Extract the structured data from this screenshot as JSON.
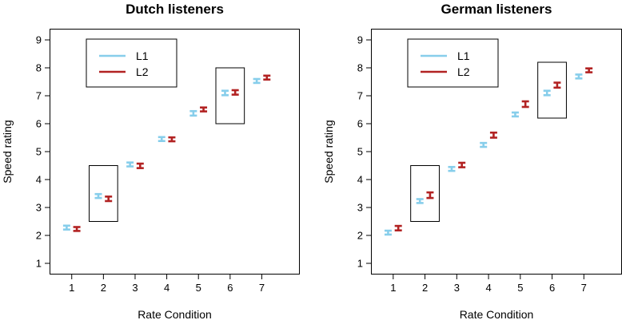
{
  "chart_data": [
    {
      "type": "errorbar",
      "title": "Dutch listeners",
      "xlabel": "Rate Condition",
      "ylabel": "Speed rating",
      "ylim": [
        0.6,
        9.4
      ],
      "yticks": [
        1,
        2,
        3,
        4,
        5,
        6,
        7,
        8,
        9
      ],
      "categories": [
        "1",
        "2",
        "3",
        "4",
        "5",
        "6",
        "7"
      ],
      "legend": {
        "position": "top-left"
      },
      "series": [
        {
          "name": "L1",
          "color": "#87CEEB",
          "values": [
            2.28,
            3.41,
            4.54,
            5.45,
            6.37,
            7.1,
            7.53
          ],
          "err": [
            0.07,
            0.07,
            0.07,
            0.07,
            0.08,
            0.08,
            0.07
          ]
        },
        {
          "name": "L2",
          "color": "#B22222",
          "values": [
            2.23,
            3.31,
            4.49,
            5.44,
            6.51,
            7.12,
            7.65
          ],
          "err": [
            0.07,
            0.08,
            0.08,
            0.07,
            0.07,
            0.08,
            0.07
          ]
        }
      ],
      "highlight_boxes": [
        {
          "x_range": [
            1.55,
            2.45
          ],
          "y_range": [
            2.5,
            4.5
          ]
        },
        {
          "x_range": [
            5.55,
            6.45
          ],
          "y_range": [
            6.0,
            8.0
          ]
        }
      ]
    },
    {
      "type": "errorbar",
      "title": "German listeners",
      "xlabel": "Rate Condition",
      "ylabel": "Speed rating",
      "ylim": [
        0.6,
        9.4
      ],
      "yticks": [
        1,
        2,
        3,
        4,
        5,
        6,
        7,
        8,
        9
      ],
      "categories": [
        "1",
        "2",
        "3",
        "4",
        "5",
        "6",
        "7"
      ],
      "legend": {
        "position": "top-left"
      },
      "series": [
        {
          "name": "L1",
          "color": "#87CEEB",
          "values": [
            2.1,
            3.23,
            4.38,
            5.24,
            6.33,
            7.1,
            7.69
          ],
          "err": [
            0.07,
            0.07,
            0.07,
            0.07,
            0.07,
            0.08,
            0.07
          ]
        },
        {
          "name": "L2",
          "color": "#B22222",
          "values": [
            2.26,
            3.44,
            4.52,
            5.59,
            6.7,
            7.38,
            7.91
          ],
          "err": [
            0.08,
            0.1,
            0.08,
            0.09,
            0.1,
            0.09,
            0.07
          ]
        }
      ],
      "highlight_boxes": [
        {
          "x_range": [
            1.55,
            2.45
          ],
          "y_range": [
            2.5,
            4.5
          ]
        },
        {
          "x_range": [
            5.55,
            6.45
          ],
          "y_range": [
            6.2,
            8.2
          ]
        }
      ]
    }
  ]
}
